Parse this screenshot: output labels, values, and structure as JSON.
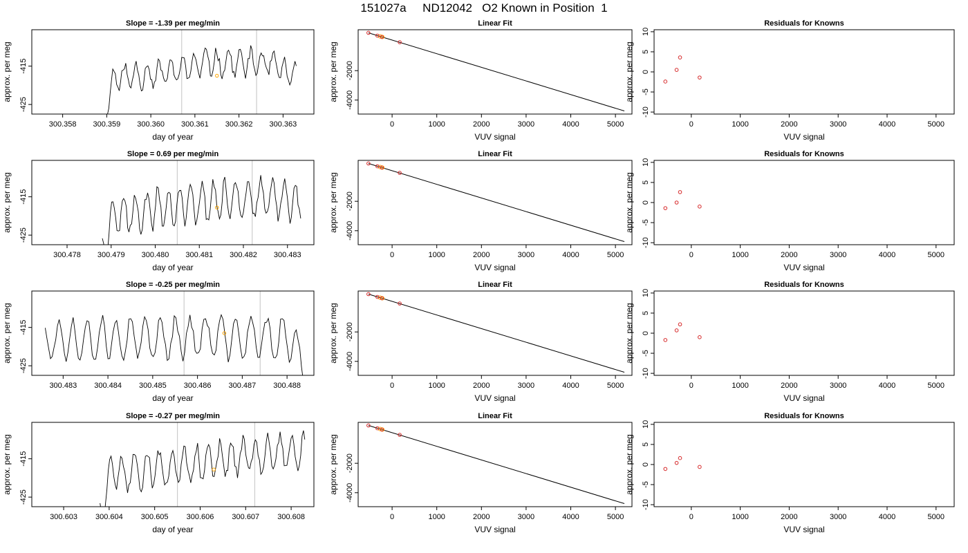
{
  "title": "151027a     ND12042   O2 Known in Position  1",
  "colors": {
    "line": "#000000",
    "vline": "#cccccc",
    "point": "#d62728",
    "highlight": "#ffa500"
  },
  "chart_data": [
    {
      "type": "line",
      "row": 0,
      "title": "Slope =  -1.39  per meg/min",
      "xlabel": "day of year",
      "ylabel": "approx. per meg",
      "xlim": [
        300.3573,
        300.3637
      ],
      "ylim": [
        -427.5,
        -405.5
      ],
      "xticks": [
        300.358,
        300.359,
        300.36,
        300.361,
        300.362,
        300.363
      ],
      "xticklabels": [
        "300.358",
        "300.359",
        "300.360",
        "300.361",
        "300.362",
        "300.363"
      ],
      "yticks": [
        -415,
        -425
      ],
      "yticklabels": [
        "-415",
        "-425"
      ],
      "data_x_range": [
        300.3589,
        300.3633
      ],
      "vlines": [
        300.3607,
        300.3624
      ],
      "highlight_point": [
        300.3615,
        -417.5
      ],
      "seed": 11,
      "amplitude": 3.2,
      "mean_profile": [
        [
          0,
          -431
        ],
        [
          0.06,
          -418
        ],
        [
          0.3,
          -417
        ],
        [
          0.55,
          -414
        ],
        [
          0.85,
          -414
        ],
        [
          1,
          -418
        ]
      ]
    },
    {
      "type": "line",
      "row": 1,
      "title": "Slope =  0.69  per meg/min",
      "xlabel": "day of year",
      "ylabel": "approx. per meg",
      "xlim": [
        300.4772,
        300.4836
      ],
      "ylim": [
        -427.5,
        -405.5
      ],
      "xticks": [
        300.478,
        300.479,
        300.48,
        300.481,
        300.482,
        300.483
      ],
      "xticklabels": [
        "300.478",
        "300.479",
        "300.480",
        "300.481",
        "300.482",
        "300.483"
      ],
      "yticks": [
        -415,
        -425
      ],
      "yticklabels": [
        "-415",
        "-425"
      ],
      "data_x_range": [
        300.4788,
        300.4833
      ],
      "vlines": [
        300.4805,
        300.4822
      ],
      "highlight_point": [
        300.4814,
        -417.8
      ],
      "seed": 23,
      "amplitude": 5.0,
      "mean_profile": [
        [
          0,
          -430
        ],
        [
          0.05,
          -420
        ],
        [
          0.4,
          -417
        ],
        [
          0.7,
          -415
        ],
        [
          1,
          -416
        ]
      ]
    },
    {
      "type": "line",
      "row": 2,
      "title": "Slope =  -0.25  per meg/min",
      "xlabel": "day of year",
      "ylabel": "approx. per meg",
      "xlim": [
        300.4823,
        300.4886
      ],
      "ylim": [
        -427.5,
        -405.5
      ],
      "xticks": [
        300.483,
        300.484,
        300.485,
        300.486,
        300.487,
        300.488
      ],
      "xticklabels": [
        "300.483",
        "300.484",
        "300.485",
        "300.486",
        "300.487",
        "300.488"
      ],
      "yticks": [
        -415,
        -425
      ],
      "yticklabels": [
        "-415",
        "-425"
      ],
      "data_x_range": [
        300.4826,
        300.4884
      ],
      "vlines": [
        300.4857,
        300.4874
      ],
      "highlight_point": [
        300.4866,
        -416.5
      ],
      "seed": 37,
      "amplitude": 5.2,
      "mean_profile": [
        [
          0,
          -418
        ],
        [
          0.5,
          -417.5
        ],
        [
          0.95,
          -418
        ],
        [
          1,
          -428
        ]
      ]
    },
    {
      "type": "line",
      "row": 3,
      "title": "Slope =  -0.27  per meg/min",
      "xlabel": "day of year",
      "ylabel": "approx. per meg",
      "xlim": [
        300.6023,
        300.6085
      ],
      "ylim": [
        -427.5,
        -405.5
      ],
      "xticks": [
        300.603,
        300.604,
        300.605,
        300.606,
        300.607,
        300.608
      ],
      "xticklabels": [
        "300.603",
        "300.604",
        "300.605",
        "300.606",
        "300.607",
        "300.608"
      ],
      "yticks": [
        -415,
        -425
      ],
      "yticklabels": [
        "-415",
        "-425"
      ],
      "data_x_range": [
        300.6038,
        300.6083
      ],
      "vlines": [
        300.6055,
        300.6072
      ],
      "highlight_point": [
        300.6063,
        -417.8
      ],
      "seed": 51,
      "amplitude": 4.6,
      "mean_profile": [
        [
          0,
          -430
        ],
        [
          0.05,
          -419
        ],
        [
          0.4,
          -417
        ],
        [
          0.7,
          -414
        ],
        [
          1,
          -413
        ]
      ]
    },
    {
      "type": "scatter",
      "subtype": "linear_fit",
      "row": 0,
      "title": "Linear Fit",
      "xlabel": "VUV signal",
      "ylabel": "approx. per meg",
      "xlim": [
        -760,
        5370
      ],
      "ylim": [
        -4950,
        780
      ],
      "xticks": [
        0,
        1000,
        2000,
        3000,
        4000,
        5000
      ],
      "xticklabels": [
        "0",
        "1000",
        "2000",
        "3000",
        "4000",
        "5000"
      ],
      "yticks": [
        -2000,
        -4000
      ],
      "yticklabels": [
        "-2000",
        "-4000"
      ],
      "line": [
        [
          -530,
          570
        ],
        [
          5200,
          -4740
        ]
      ],
      "points": [
        [
          -530,
          570
        ],
        [
          -330,
          380
        ],
        [
          -230,
          290
        ],
        [
          170,
          -70
        ]
      ],
      "highlight_points": [
        [
          -270,
          330
        ],
        [
          -220,
          290
        ]
      ]
    },
    {
      "type": "scatter",
      "subtype": "linear_fit",
      "row": 1,
      "title": "Linear Fit",
      "xlabel": "VUV signal",
      "ylabel": "approx. per meg",
      "xlim": [
        -760,
        5370
      ],
      "ylim": [
        -4950,
        780
      ],
      "xticks": [
        0,
        1000,
        2000,
        3000,
        4000,
        5000
      ],
      "xticklabels": [
        "0",
        "1000",
        "2000",
        "3000",
        "4000",
        "5000"
      ],
      "yticks": [
        -2000,
        -4000
      ],
      "yticklabels": [
        "-2000",
        "-4000"
      ],
      "line": [
        [
          -530,
          570
        ],
        [
          5200,
          -4740
        ]
      ],
      "points": [
        [
          -530,
          570
        ],
        [
          -330,
          380
        ],
        [
          -230,
          290
        ],
        [
          170,
          -70
        ]
      ],
      "highlight_points": [
        [
          -270,
          330
        ],
        [
          -220,
          290
        ]
      ]
    },
    {
      "type": "scatter",
      "subtype": "linear_fit",
      "row": 2,
      "title": "Linear Fit",
      "xlabel": "VUV signal",
      "ylabel": "approx. per meg",
      "xlim": [
        -760,
        5370
      ],
      "ylim": [
        -4950,
        780
      ],
      "xticks": [
        0,
        1000,
        2000,
        3000,
        4000,
        5000
      ],
      "xticklabels": [
        "0",
        "1000",
        "2000",
        "3000",
        "4000",
        "5000"
      ],
      "yticks": [
        -2000,
        -4000
      ],
      "yticklabels": [
        "-2000",
        "-4000"
      ],
      "line": [
        [
          -530,
          570
        ],
        [
          5200,
          -4740
        ]
      ],
      "points": [
        [
          -530,
          570
        ],
        [
          -330,
          380
        ],
        [
          -230,
          290
        ],
        [
          170,
          -70
        ]
      ],
      "highlight_points": [
        [
          -270,
          330
        ],
        [
          -220,
          290
        ]
      ]
    },
    {
      "type": "scatter",
      "subtype": "linear_fit",
      "row": 3,
      "title": "Linear Fit",
      "xlabel": "VUV signal",
      "ylabel": "approx. per meg",
      "xlim": [
        -760,
        5370
      ],
      "ylim": [
        -4950,
        780
      ],
      "xticks": [
        0,
        1000,
        2000,
        3000,
        4000,
        5000
      ],
      "xticklabels": [
        "0",
        "1000",
        "2000",
        "3000",
        "4000",
        "5000"
      ],
      "yticks": [
        -2000,
        -4000
      ],
      "yticklabels": [
        "-2000",
        "-4000"
      ],
      "line": [
        [
          -530,
          570
        ],
        [
          5200,
          -4740
        ]
      ],
      "points": [
        [
          -530,
          570
        ],
        [
          -330,
          380
        ],
        [
          -230,
          290
        ],
        [
          170,
          -70
        ]
      ],
      "highlight_points": [
        [
          -270,
          330
        ],
        [
          -220,
          290
        ]
      ]
    },
    {
      "type": "scatter",
      "subtype": "residuals",
      "row": 0,
      "title": "Residuals for Knowns",
      "xlabel": "VUV signal",
      "ylabel": "approx. per meg",
      "xlim": [
        -760,
        5370
      ],
      "ylim": [
        -10.5,
        10.5
      ],
      "xticks": [
        0,
        1000,
        2000,
        3000,
        4000,
        5000
      ],
      "xticklabels": [
        "0",
        "1000",
        "2000",
        "3000",
        "4000",
        "5000"
      ],
      "yticks": [
        -10,
        -5,
        0,
        5,
        10
      ],
      "yticklabels": [
        "-10",
        "-5",
        "0",
        "5",
        "10"
      ],
      "points": [
        [
          -530,
          -2.4
        ],
        [
          -300,
          0.5
        ],
        [
          -230,
          3.6
        ],
        [
          170,
          -1.4
        ]
      ]
    },
    {
      "type": "scatter",
      "subtype": "residuals",
      "row": 1,
      "title": "Residuals for Knowns",
      "xlabel": "VUV signal",
      "ylabel": "approx. per meg",
      "xlim": [
        -760,
        5370
      ],
      "ylim": [
        -10.5,
        10.5
      ],
      "xticks": [
        0,
        1000,
        2000,
        3000,
        4000,
        5000
      ],
      "xticklabels": [
        "0",
        "1000",
        "2000",
        "3000",
        "4000",
        "5000"
      ],
      "yticks": [
        -10,
        -5,
        0,
        5,
        10
      ],
      "yticklabels": [
        "-10",
        "-5",
        "0",
        "5",
        "10"
      ],
      "points": [
        [
          -530,
          -1.4
        ],
        [
          -300,
          0.0
        ],
        [
          -230,
          2.6
        ],
        [
          170,
          -1.0
        ]
      ]
    },
    {
      "type": "scatter",
      "subtype": "residuals",
      "row": 2,
      "title": "Residuals for Knowns",
      "xlabel": "VUV signal",
      "ylabel": "approx. per meg",
      "xlim": [
        -760,
        5370
      ],
      "ylim": [
        -10.5,
        10.5
      ],
      "xticks": [
        0,
        1000,
        2000,
        3000,
        4000,
        5000
      ],
      "xticklabels": [
        "0",
        "1000",
        "2000",
        "3000",
        "4000",
        "5000"
      ],
      "yticks": [
        -10,
        -5,
        0,
        5,
        10
      ],
      "yticklabels": [
        "-10",
        "-5",
        "0",
        "5",
        "10"
      ],
      "points": [
        [
          -530,
          -1.7
        ],
        [
          -300,
          0.7
        ],
        [
          -230,
          2.2
        ],
        [
          170,
          -1.0
        ]
      ]
    },
    {
      "type": "scatter",
      "subtype": "residuals",
      "row": 3,
      "title": "Residuals for Knowns",
      "xlabel": "VUV signal",
      "ylabel": "approx. per meg",
      "xlim": [
        -760,
        5370
      ],
      "ylim": [
        -10.5,
        10.5
      ],
      "xticks": [
        0,
        1000,
        2000,
        3000,
        4000,
        5000
      ],
      "xticklabels": [
        "0",
        "1000",
        "2000",
        "3000",
        "4000",
        "5000"
      ],
      "yticks": [
        -10,
        -5,
        0,
        5,
        10
      ],
      "yticklabels": [
        "-10",
        "-5",
        "0",
        "5",
        "10"
      ],
      "points": [
        [
          -530,
          -1.1
        ],
        [
          -300,
          0.4
        ],
        [
          -230,
          1.6
        ],
        [
          170,
          -0.6
        ]
      ]
    }
  ]
}
